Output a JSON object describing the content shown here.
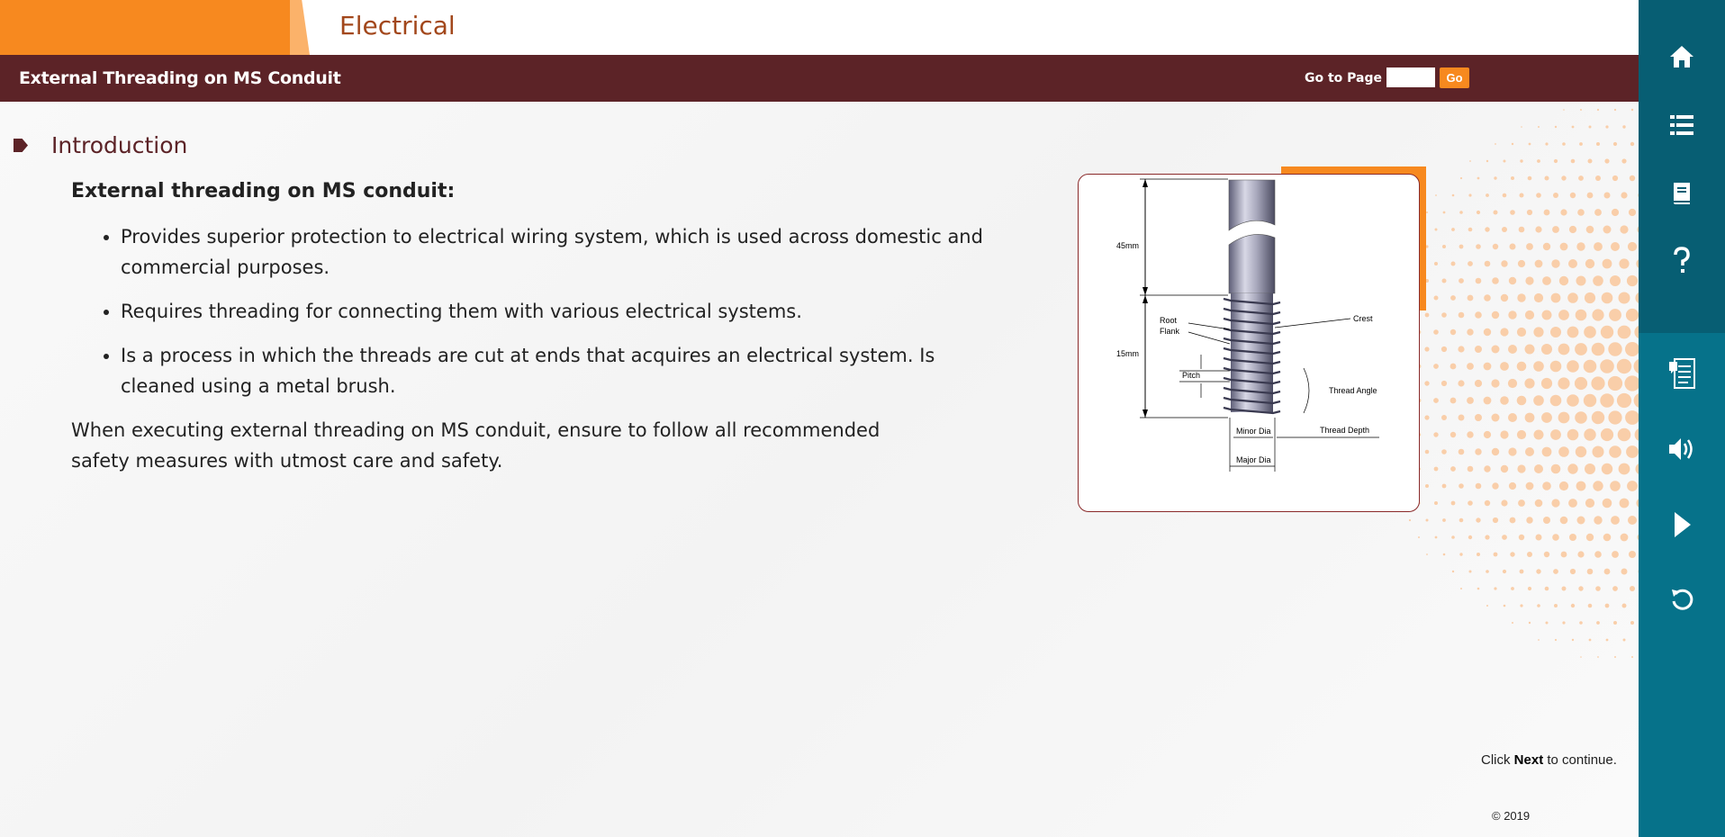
{
  "header": {
    "module_title": "Electrical",
    "page_title": "External Threading on MS Conduit",
    "goto_label": "Go to Page :",
    "goto_value": "",
    "go_button": "Go"
  },
  "main": {
    "section_heading": "Introduction",
    "subheading": "External threading on MS conduit:",
    "points": [
      "Provides superior protection to electrical wiring system, which is used across domestic and commercial purposes.",
      "Requires threading for connecting them with various electrical systems.",
      "Is a process in which the threads are cut at ends that acquires an electrical system. Is cleaned using a metal brush."
    ],
    "paragraph": "When executing external threading on MS conduit, ensure to follow all recommended safety measures with utmost care and safety."
  },
  "diagram": {
    "labels": {
      "len_45": "45mm",
      "len_15": "15mm",
      "root": "Root",
      "flank": "Flank",
      "crest": "Crest",
      "pitch": "Pitch",
      "thread_angle": "Thread Angle",
      "minor_dia": "Minor Dia",
      "thread_depth": "Thread Depth",
      "major_dia": "Major Dia"
    }
  },
  "footer": {
    "continue_prefix": "Click ",
    "continue_bold": "Next",
    "continue_suffix": " to continue.",
    "copyright": "© 2019"
  },
  "sidebar": {
    "icons": [
      "home-icon",
      "menu-list-icon",
      "glossary-book-icon",
      "help-icon",
      "transcript-icon",
      "audio-icon",
      "next-icon",
      "replay-icon"
    ]
  },
  "colors": {
    "accent_orange": "#f7891f",
    "title_bar": "#5c2327",
    "sidebar_teal": "#06728a",
    "sidebar_dark": "#075e73",
    "heading_brown": "#a2471b"
  }
}
